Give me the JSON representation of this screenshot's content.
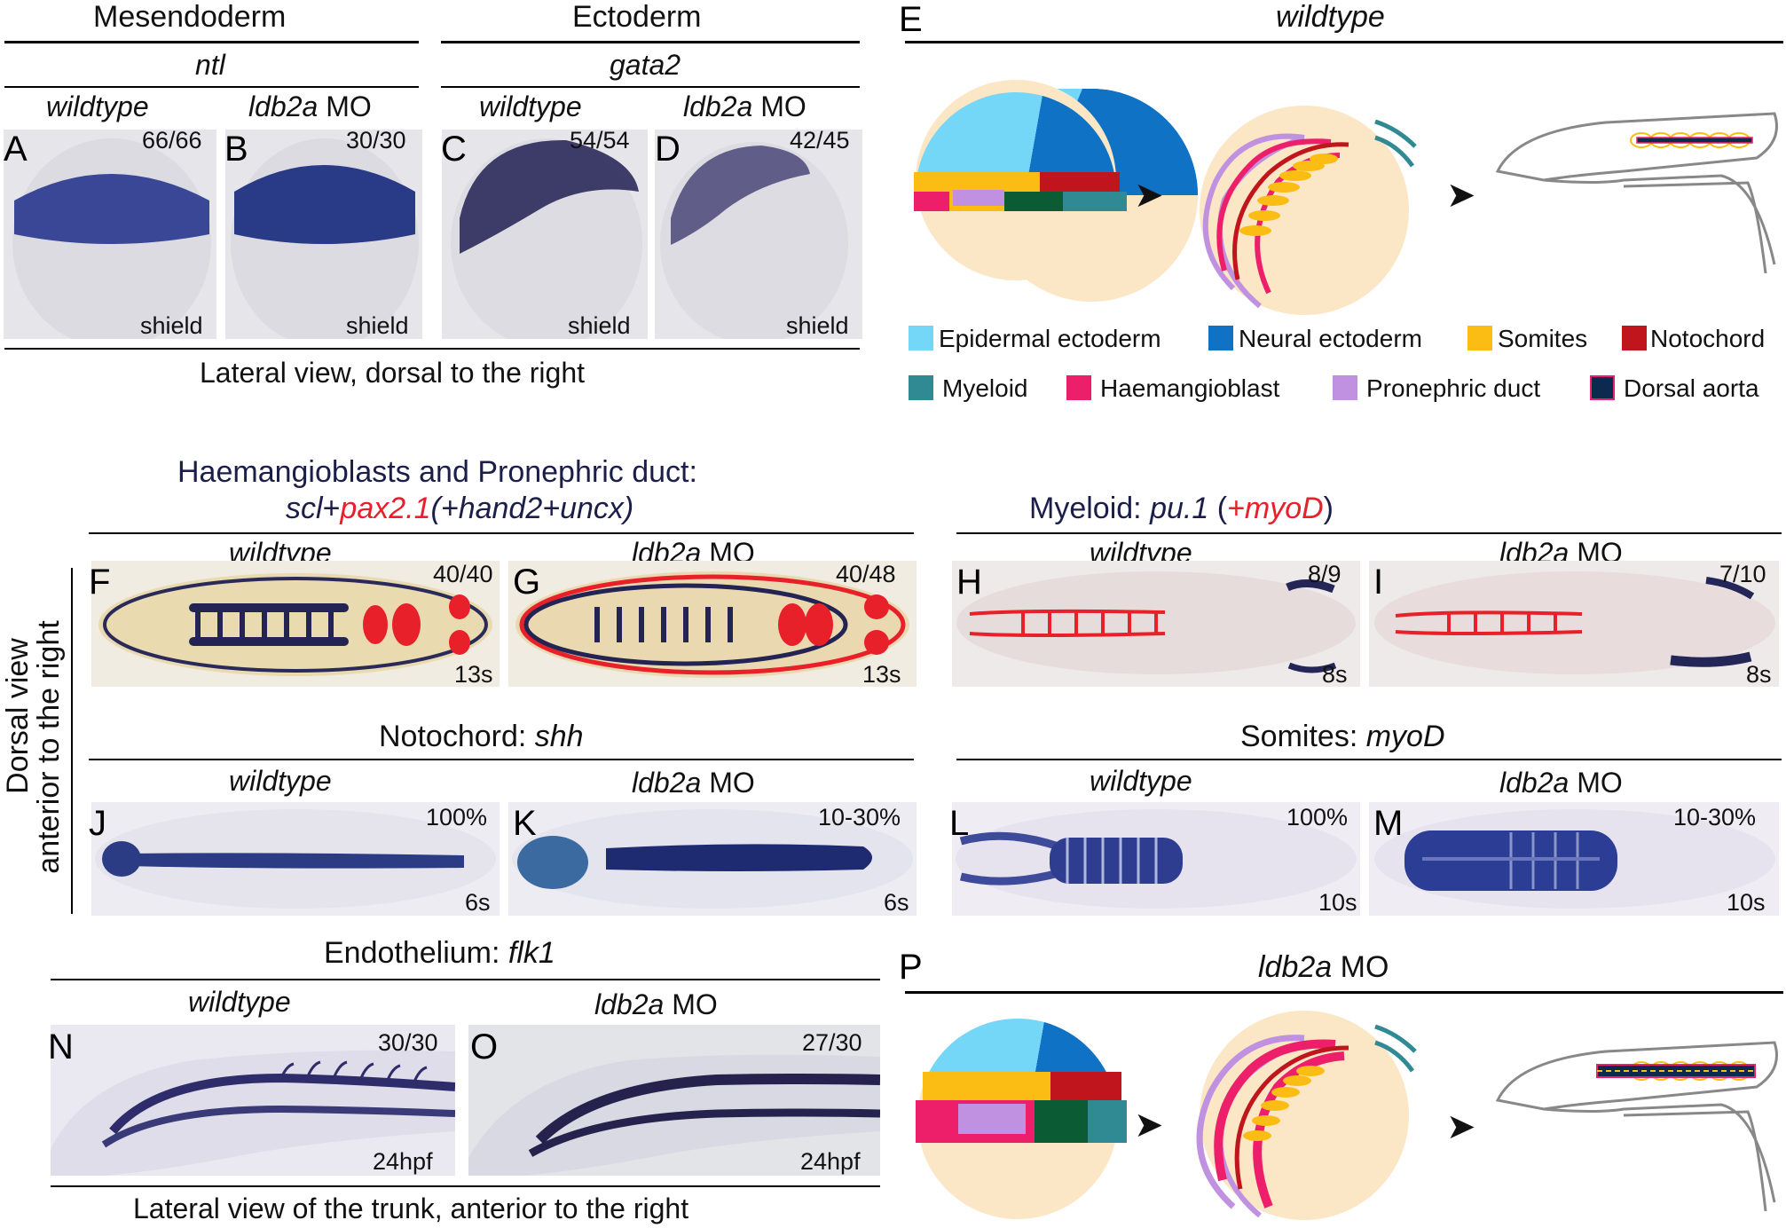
{
  "top": {
    "mesendoderm": "Mesendoderm",
    "ectoderm": "Ectoderm",
    "ntl": "ntl",
    "gata2": "gata2",
    "caption": "Lateral view, dorsal to the right",
    "panels": [
      {
        "letter": "A",
        "cond": "wildtype",
        "count": "66/66",
        "stage": "shield"
      },
      {
        "letter": "B",
        "cond_it": "ldb2a",
        "cond_rest": " MO",
        "count": "30/30",
        "stage": "shield"
      },
      {
        "letter": "C",
        "cond": "wildtype",
        "count": "54/54",
        "stage": "shield"
      },
      {
        "letter": "D",
        "cond_it": "ldb2a",
        "cond_rest": " MO",
        "count": "42/45",
        "stage": "shield"
      }
    ]
  },
  "E": {
    "letter": "E",
    "title": "wildtype",
    "legend": [
      {
        "label": "Epidermal ectoderm",
        "color": "#74d7f7"
      },
      {
        "label": "Neural ectoderm",
        "color": "#0f72c4"
      },
      {
        "label": "Somites",
        "color": "#fbbd13"
      },
      {
        "label": "Notochord",
        "color": "#c1151d"
      },
      {
        "label": "Myeloid",
        "color": "#2f8a93"
      },
      {
        "label": "Haemangioblast",
        "color": "#ee1f6a"
      },
      {
        "label": "Pronephric duct",
        "color": "#bf91e0"
      },
      {
        "label": "Dorsal aorta",
        "color": "#0c2a4d"
      }
    ]
  },
  "middle": {
    "hp_title": "Haemangioblasts and Pronephric duct:",
    "hp_scl": "scl",
    "hp_plus1": "+",
    "hp_pax": "pax2.1",
    "hp_rest": "(+hand2+uncx)",
    "side_label_1": "Dorsal view",
    "side_label_2": "anterior to the right",
    "my_title": "Myeloid: ",
    "my_gene": "pu.1",
    "my_open": " (",
    "my_myod": "+myoD",
    "my_close": ")",
    "noto_title": "Notochord: ",
    "noto_gene": "shh",
    "som_title": "Somites: ",
    "som_gene": "myoD",
    "panels": [
      {
        "letter": "F",
        "cond": "wildtype",
        "count": "40/40",
        "stage": "13s"
      },
      {
        "letter": "G",
        "cond_it": "ldb2a",
        "cond_rest": " MO",
        "count": "40/48",
        "stage": "13s"
      },
      {
        "letter": "H",
        "cond": "wildtype",
        "count": "8/9",
        "stage": "8s"
      },
      {
        "letter": "I",
        "cond_it": "ldb2a",
        "cond_rest": " MO",
        "count": "7/10",
        "stage": "8s"
      },
      {
        "letter": "J",
        "cond": "wildtype",
        "count": "100%",
        "stage": "6s"
      },
      {
        "letter": "K",
        "cond_it": "ldb2a",
        "cond_rest": " MO",
        "count": "10-30%",
        "stage": "6s"
      },
      {
        "letter": "L",
        "cond": "wildtype",
        "count": "100%",
        "stage": "10s"
      },
      {
        "letter": "M",
        "cond_it": "ldb2a",
        "cond_rest": " MO",
        "count": "10-30%",
        "stage": "10s"
      }
    ]
  },
  "bottom": {
    "endo_title": "Endothelium: ",
    "endo_gene": "flk1",
    "caption": "Lateral view of the trunk, anterior to the right",
    "panels": [
      {
        "letter": "N",
        "cond": "wildtype",
        "count": "30/30",
        "stage": "24hpf"
      },
      {
        "letter": "O",
        "cond_it": "ldb2a",
        "cond_rest": " MO",
        "count": "27/30",
        "stage": "24hpf"
      }
    ]
  },
  "P": {
    "letter": "P",
    "title_it": "ldb2a",
    "title_rest": " MO"
  }
}
